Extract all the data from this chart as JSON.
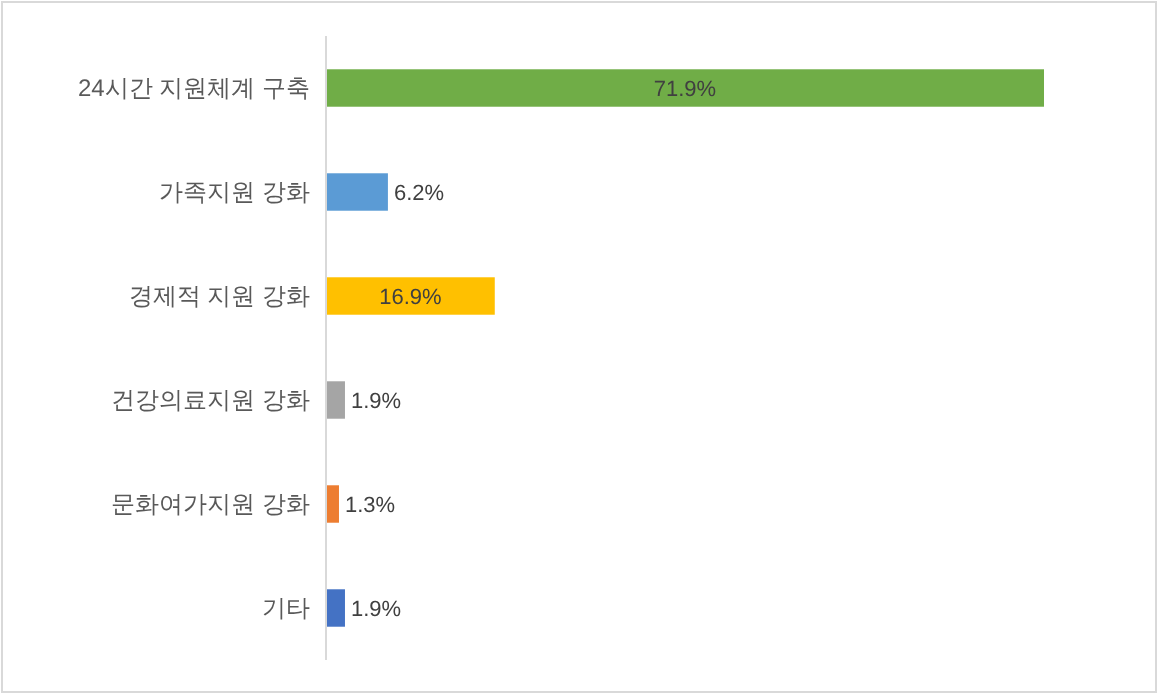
{
  "chart_data": {
    "type": "bar",
    "orientation": "horizontal",
    "categories": [
      "24시간 지원체계 구축",
      "가족지원 강화",
      "경제적 지원 강화",
      "건강의료지원 강화",
      "문화여가지원 강화",
      "기타"
    ],
    "values": [
      71.9,
      6.2,
      16.9,
      1.9,
      1.3,
      1.9
    ],
    "colors": [
      "#70ad47",
      "#5b9bd5",
      "#ffc000",
      "#a5a5a5",
      "#ed7d31",
      "#4472c4"
    ],
    "value_labels": [
      "71.9%",
      "6.2%",
      "16.9%",
      "1.9%",
      "1.3%",
      "1.9%"
    ]
  }
}
